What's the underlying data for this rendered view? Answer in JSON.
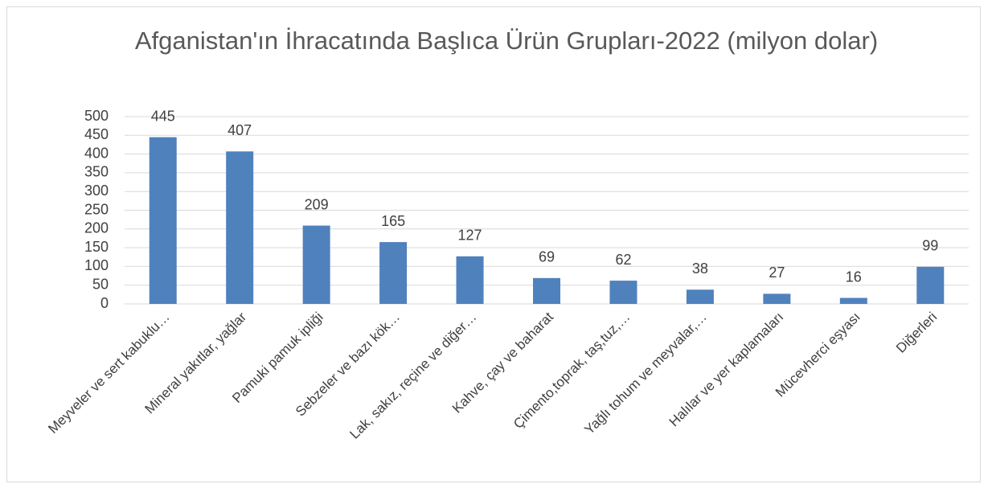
{
  "chart_data": {
    "type": "bar",
    "title": "Afganistan'ın İhracatında Başlıca Ürün Grupları-2022 (milyon dolar)",
    "categories": [
      "Meyveler ve sert kabuklu…",
      "Mineral yakıtlar, yağlar",
      "Pamuki pamuk ipliği",
      "Sebzeler ve bazı kök…",
      "Lak, sakız, reçine ve diğer…",
      "Kahve, çay ve baharat",
      "Çimento,toprak, taş,tuz,…",
      "Yağlı tohum ve meyvalar,…",
      "Halılar ve yer kaplamaları",
      "Mücevherci eşyası",
      "Diğerleri"
    ],
    "values": [
      445,
      407,
      209,
      165,
      127,
      69,
      62,
      38,
      27,
      16,
      99
    ],
    "color": "#4f81bd",
    "ylim": [
      0,
      500
    ],
    "yticks": [
      0,
      50,
      100,
      150,
      200,
      250,
      300,
      350,
      400,
      450,
      500
    ],
    "grid": true,
    "value_labels_shown": true
  }
}
